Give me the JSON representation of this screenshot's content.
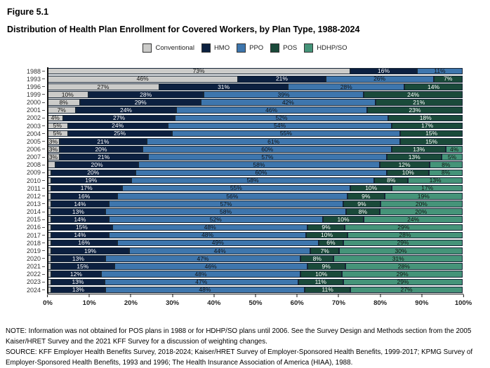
{
  "figure_label": "Figure 5.1",
  "title": "Distribution of Health Plan Enrollment for Covered Workers, by Plan Type, 1988-2024",
  "note": "NOTE: Information was not obtained for POS plans in 1988 or for HDHP/SO plans until 2006. See the Survey Design and Methods section from the 2005 Kaiser/HRET Survey and the 2021 KFF Survey for a discussion of weighting changes.",
  "source": "SOURCE: KFF Employer Health Benefits Survey, 2018-2024; Kaiser/HRET Survey of Employer-Sponsored Health Benefits, 1999-2017; KPMG Survey of Employer-Sponsored Health Benefits, 1993 and 1996; The Health Insurance Association of America (HIAA), 1988.",
  "chart_data": {
    "type": "bar",
    "subtype": "horizontal-stacked-percent",
    "title": "Distribution of Health Plan Enrollment for Covered Workers, by Plan Type, 1988-2024",
    "xlabel": "",
    "ylabel": "",
    "xlim": [
      0,
      100
    ],
    "grid": false,
    "legend_position": "top-center",
    "series_names": [
      "Conventional",
      "HMO",
      "PPO",
      "POS",
      "HDHP/SO"
    ],
    "series_keys": [
      "conventional",
      "hmo",
      "ppo",
      "pos",
      "hdhpso"
    ],
    "colors": [
      "#cbcbc9",
      "#0c2040",
      "#3e76ad",
      "#1a4a3a",
      "#459479"
    ],
    "label_colors": [
      "#111111",
      "#ffffff",
      "#111111",
      "#ffffff",
      "#111111"
    ],
    "x_tick_labels": [
      "0%",
      "10%",
      "20%",
      "30%",
      "40%",
      "50%",
      "60%",
      "70%",
      "80%",
      "90%",
      "100%"
    ],
    "rows": [
      {
        "year": "1988",
        "values": [
          73,
          16,
          11,
          0,
          0
        ],
        "labels": [
          "73%",
          "16%",
          "11%",
          "",
          ""
        ]
      },
      {
        "year": "1993",
        "values": [
          46,
          21,
          26,
          7,
          0
        ],
        "labels": [
          "46%",
          "21%",
          "26%",
          "7%",
          ""
        ]
      },
      {
        "year": "1996",
        "values": [
          27,
          31,
          28,
          14,
          0
        ],
        "labels": [
          "27%",
          "31%",
          "28%",
          "14%",
          ""
        ]
      },
      {
        "year": "1999",
        "values": [
          10,
          28,
          39,
          24,
          0
        ],
        "labels": [
          "10%",
          "28%",
          "39%",
          "24%",
          ""
        ]
      },
      {
        "year": "2000",
        "values": [
          8,
          29,
          42,
          21,
          0
        ],
        "labels": [
          "8%",
          "29%",
          "42%",
          "21%",
          ""
        ]
      },
      {
        "year": "2001",
        "values": [
          7,
          24,
          46,
          23,
          0
        ],
        "labels": [
          "7%",
          "24%",
          "46%",
          "23%",
          ""
        ]
      },
      {
        "year": "2002",
        "values": [
          4,
          27,
          52,
          18,
          0
        ],
        "labels": [
          "4%",
          "27%",
          "52%",
          "18%",
          ""
        ]
      },
      {
        "year": "2003",
        "values": [
          5,
          24,
          54,
          17,
          0
        ],
        "labels": [
          "5%",
          "24%",
          "54%",
          "17%",
          ""
        ]
      },
      {
        "year": "2004",
        "values": [
          5,
          25,
          55,
          15,
          0
        ],
        "labels": [
          "5%",
          "25%",
          "55%",
          "15%",
          ""
        ]
      },
      {
        "year": "2005",
        "values": [
          3,
          21,
          61,
          15,
          0
        ],
        "labels": [
          "3%",
          "21%",
          "61%",
          "15%",
          ""
        ]
      },
      {
        "year": "2006",
        "values": [
          3,
          20,
          60,
          13,
          4
        ],
        "labels": [
          "3%",
          "20%",
          "60%",
          "13%",
          "4%"
        ]
      },
      {
        "year": "2007",
        "values": [
          3,
          21,
          57,
          13,
          5
        ],
        "labels": [
          "3%",
          "21%",
          "57%",
          "13%",
          "5%"
        ]
      },
      {
        "year": "2008",
        "values": [
          2,
          20,
          58,
          12,
          8
        ],
        "labels": [
          "",
          "20%",
          "58%",
          "12%",
          "8%"
        ]
      },
      {
        "year": "2009",
        "values": [
          1,
          20,
          60,
          10,
          8
        ],
        "labels": [
          "",
          "20%",
          "60%",
          "10%",
          "8%"
        ]
      },
      {
        "year": "2010",
        "values": [
          1,
          19,
          58,
          8,
          13
        ],
        "labels": [
          "",
          "19%",
          "58%",
          "8%",
          "13%"
        ]
      },
      {
        "year": "2011",
        "values": [
          1,
          17,
          55,
          10,
          17
        ],
        "labels": [
          "",
          "17%",
          "55%",
          "10%",
          "17%"
        ]
      },
      {
        "year": "2012",
        "values": [
          1,
          16,
          56,
          9,
          19
        ],
        "labels": [
          "",
          "16%",
          "56%",
          "9%",
          "19%"
        ]
      },
      {
        "year": "2013",
        "values": [
          1,
          14,
          57,
          9,
          20
        ],
        "labels": [
          "",
          "14%",
          "57%",
          "9%",
          "20%"
        ]
      },
      {
        "year": "2014",
        "values": [
          1,
          13,
          58,
          8,
          20
        ],
        "labels": [
          "",
          "13%",
          "58%",
          "8%",
          "20%"
        ]
      },
      {
        "year": "2015",
        "values": [
          1,
          14,
          52,
          10,
          24
        ],
        "labels": [
          "",
          "14%",
          "52%",
          "10%",
          "24%"
        ]
      },
      {
        "year": "2016",
        "values": [
          1,
          15,
          48,
          9,
          29
        ],
        "labels": [
          "",
          "15%",
          "48%",
          "9%",
          "29%"
        ]
      },
      {
        "year": "2017",
        "values": [
          1,
          14,
          48,
          10,
          28
        ],
        "labels": [
          "",
          "14%",
          "48%",
          "10%",
          "28%"
        ]
      },
      {
        "year": "2018",
        "values": [
          1,
          16,
          49,
          6,
          29
        ],
        "labels": [
          "",
          "16%",
          "49%",
          "6%",
          "29%"
        ]
      },
      {
        "year": "2019",
        "values": [
          1,
          19,
          44,
          7,
          30
        ],
        "labels": [
          "",
          "19%",
          "44%",
          "7%",
          "30%"
        ]
      },
      {
        "year": "2020",
        "values": [
          1,
          13,
          47,
          8,
          31
        ],
        "labels": [
          "",
          "13%",
          "47%",
          "8%",
          "31%"
        ]
      },
      {
        "year": "2021",
        "values": [
          1,
          15,
          46,
          9,
          28
        ],
        "labels": [
          "",
          "15%",
          "46%",
          "9%",
          "28%"
        ]
      },
      {
        "year": "2022",
        "values": [
          1,
          12,
          48,
          10,
          29
        ],
        "labels": [
          "",
          "12%",
          "48%",
          "10%",
          "29%"
        ]
      },
      {
        "year": "2023",
        "values": [
          1,
          13,
          47,
          11,
          29
        ],
        "labels": [
          "",
          "13%",
          "47%",
          "11%",
          "29%"
        ]
      },
      {
        "year": "2024",
        "values": [
          1,
          13,
          48,
          11,
          27
        ],
        "labels": [
          "",
          "13%",
          "48%",
          "11%",
          "27%"
        ]
      }
    ]
  }
}
